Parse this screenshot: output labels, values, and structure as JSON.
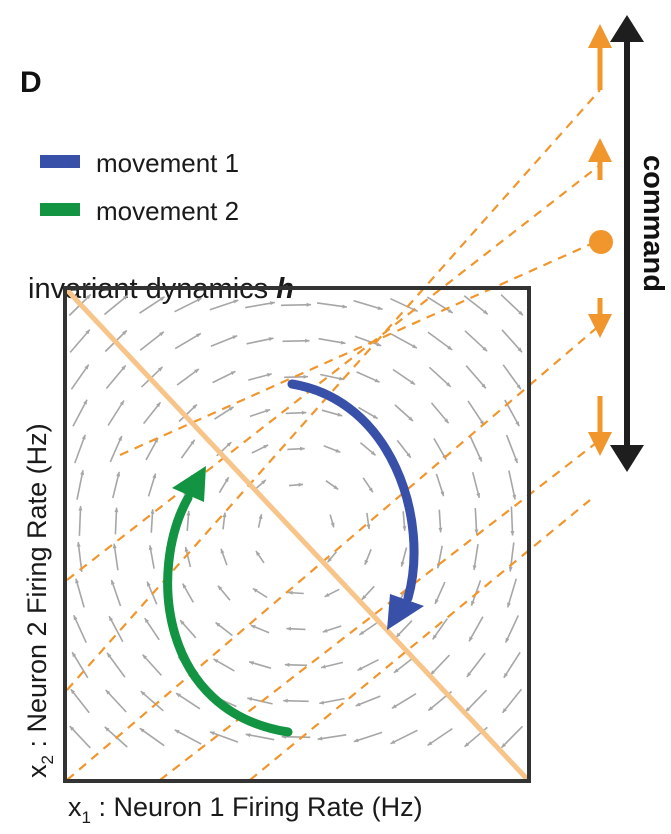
{
  "panel_label": "D",
  "legend": {
    "items": [
      {
        "label": "movement 1",
        "color": "#3950a8"
      },
      {
        "label": "movement 2",
        "color": "#139443"
      }
    ]
  },
  "dynamics_label": {
    "prefix": "invariant dynamics ",
    "symbol": "h"
  },
  "axes": {
    "x": {
      "var": "x",
      "sub": "1",
      "text": " : Neuron 1 Firing Rate (Hz)"
    },
    "y": {
      "var": "x",
      "sub": "2",
      "text": " : Neuron 2 Firing Rate (Hz)"
    }
  },
  "command_axis": {
    "label": "command"
  },
  "command_markers": [
    {
      "kind": "up-arrow",
      "level": 2
    },
    {
      "kind": "up-arrow",
      "level": 1
    },
    {
      "kind": "dot",
      "level": 0
    },
    {
      "kind": "down-arrow",
      "level": -1
    },
    {
      "kind": "down-arrow",
      "level": -2
    }
  ],
  "colors": {
    "frame": "#333333",
    "field_arrow": "#a6a6a6",
    "command_orange": "#f0962c",
    "invariant_line": "#f7c589",
    "command_axis": "#1e1e1e",
    "text": "#1a1a1a"
  }
}
